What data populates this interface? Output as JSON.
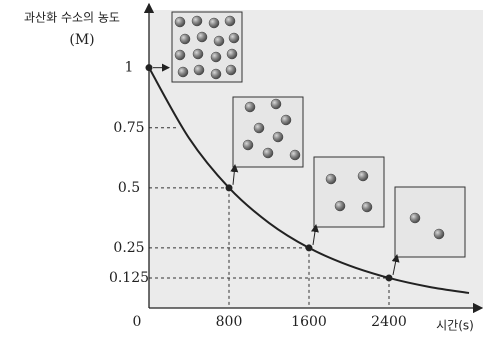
{
  "chart_data": {
    "type": "line",
    "y_label_line1": "과산화 수소의 농도",
    "y_label_line2": "(M)",
    "x_label": "시간(s)",
    "series": [
      {
        "color": "#222222",
        "x": [
          0,
          400,
          800,
          1200,
          1600,
          2000,
          2400,
          2800,
          3200
        ],
        "values": [
          1,
          0.707,
          0.5,
          0.354,
          0.25,
          0.177,
          0.125,
          0.088,
          0.0625
        ]
      }
    ],
    "points": {
      "x": [
        0,
        800,
        1600,
        2400
      ],
      "values": [
        1,
        0.5,
        0.25,
        0.125
      ]
    },
    "xlim": [
      0,
      3340
    ],
    "ylim": [
      0,
      1.24
    ],
    "xticks": [
      800,
      1600,
      2400
    ],
    "yticks": [
      0,
      0.125,
      0.25,
      0.5,
      0.75,
      1
    ],
    "background": "#ebebeb"
  }
}
